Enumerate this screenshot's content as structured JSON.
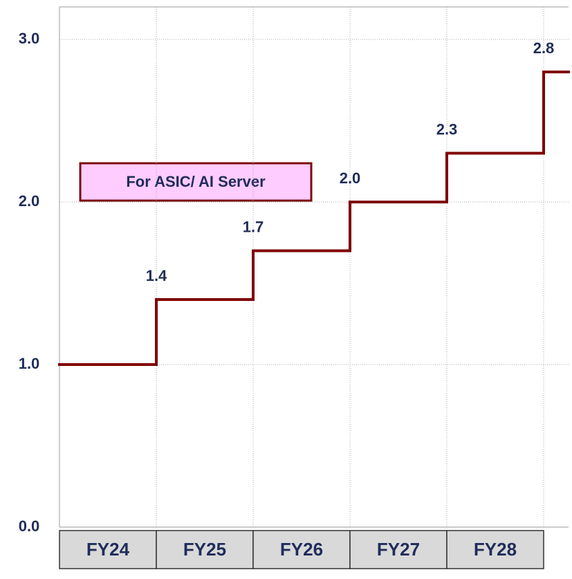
{
  "chart_data": {
    "type": "step",
    "annotation": "For ASIC/ AI Server",
    "categories": [
      "FY24",
      "FY25",
      "FY26",
      "FY27",
      "FY28",
      null
    ],
    "values": [
      1.0,
      1.4,
      1.7,
      2.0,
      2.3,
      2.8
    ],
    "value_labels": [
      null,
      "1.4",
      "1.7",
      "2.0",
      "2.3",
      "2.8"
    ],
    "color": "#800000",
    "ylim": [
      0,
      3.2
    ],
    "yticks": [
      {
        "value": 0,
        "label": "0.0"
      },
      {
        "value": 1,
        "label": "1.0"
      },
      {
        "value": 2,
        "label": "2.0"
      },
      {
        "value": 3,
        "label": "3.0"
      }
    ],
    "grid": true
  }
}
